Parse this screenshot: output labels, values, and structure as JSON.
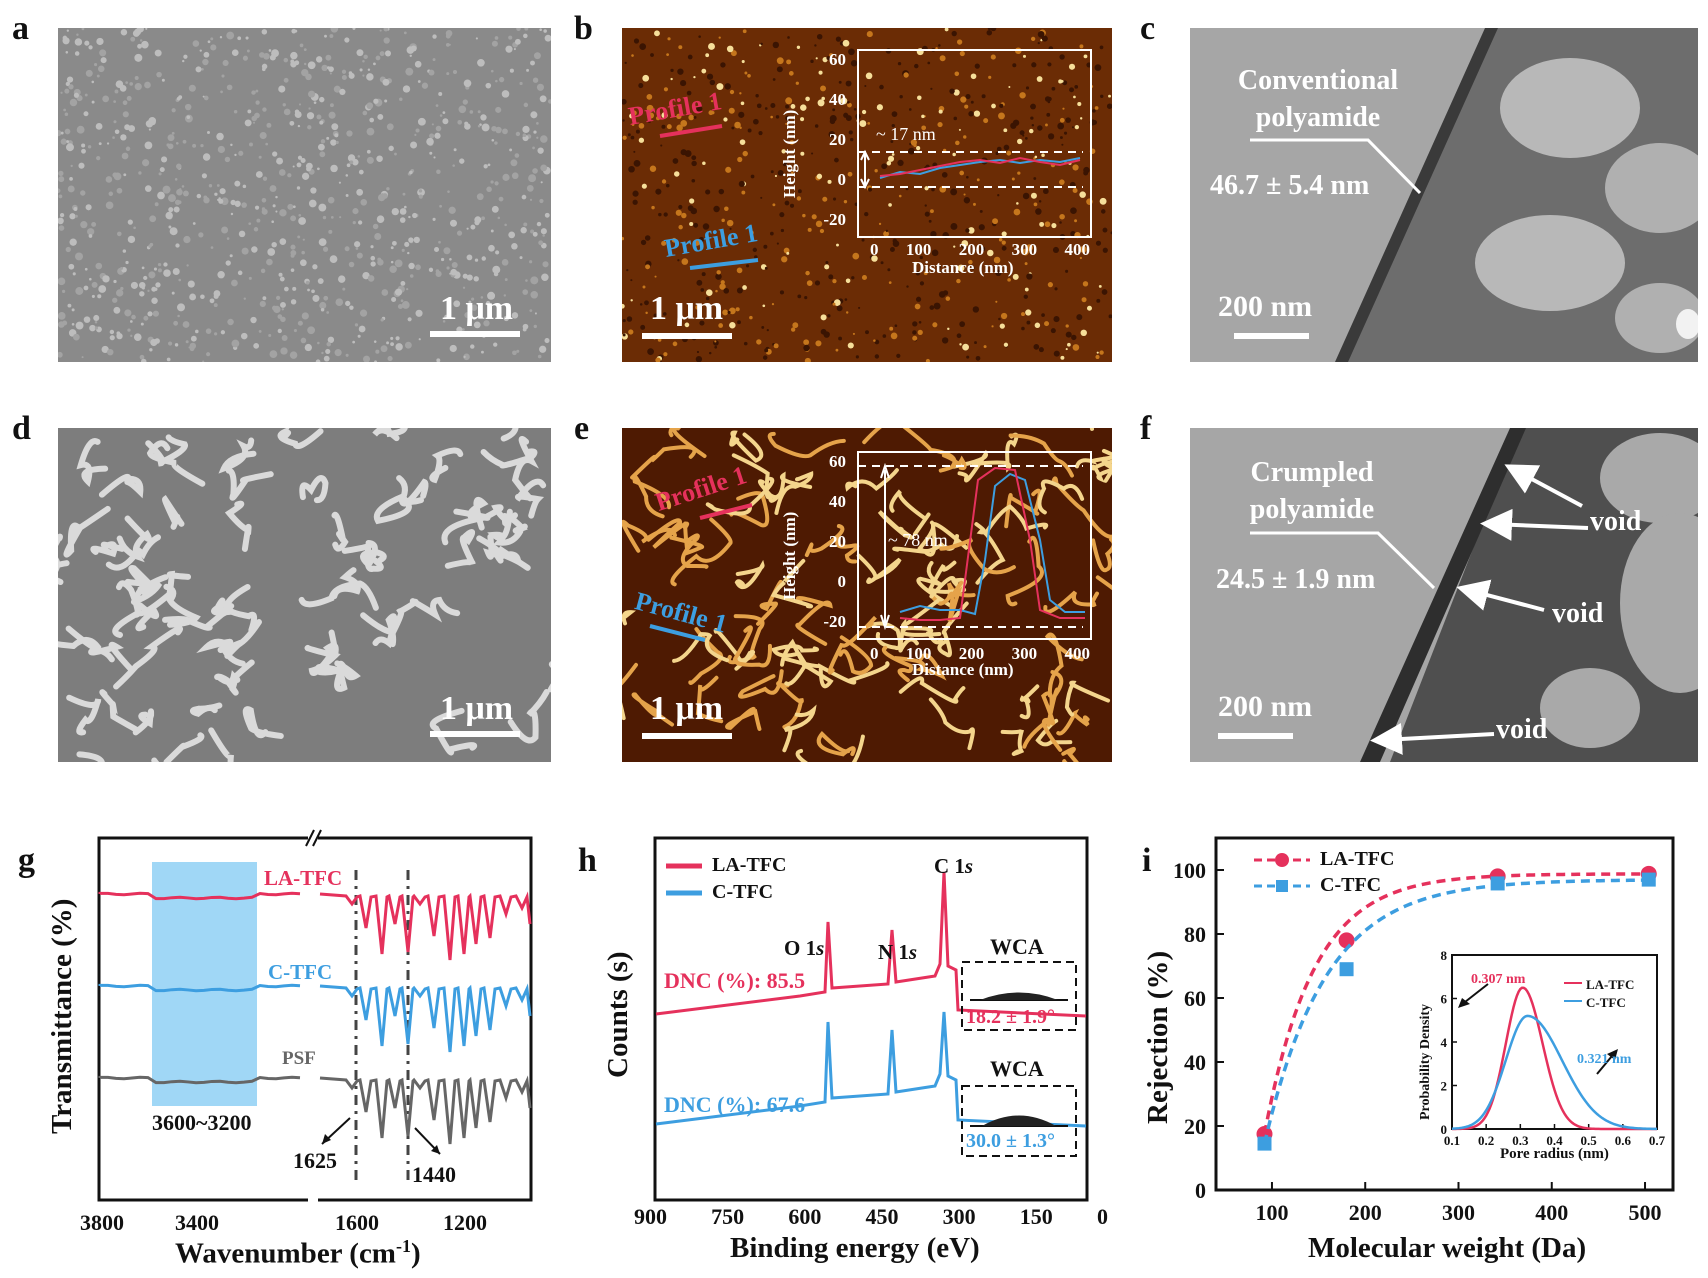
{
  "panels": {
    "a": {
      "label": "a",
      "scale": "1 μm"
    },
    "b": {
      "label": "b",
      "scale": "1 μm",
      "profile_red": "Profile 1",
      "profile_blue": "Profile 1",
      "inset": {
        "ylabel": "Height (nm)",
        "xlabel": "Distance (nm)",
        "annotation": "~ 17 nm",
        "yticks": [
          "60",
          "40",
          "20",
          "0",
          "-20"
        ],
        "xticks": [
          "0",
          "100",
          "200",
          "300",
          "400"
        ]
      }
    },
    "c": {
      "label": "c",
      "scale": "200 nm",
      "title_line1": "Conventional",
      "title_line2": "polyamide",
      "thickness": "46.7 ± 5.4 nm"
    },
    "d": {
      "label": "d",
      "scale": "1 μm"
    },
    "e": {
      "label": "e",
      "scale": "1 μm",
      "profile_red": "Profile 1",
      "profile_blue": "Profile 1",
      "inset": {
        "ylabel": "Height (nm)",
        "xlabel": "Distance (nm)",
        "annotation": "~ 78 nm",
        "yticks": [
          "60",
          "40",
          "20",
          "0",
          "-20"
        ],
        "xticks": [
          "0",
          "100",
          "200",
          "300",
          "400"
        ]
      }
    },
    "f": {
      "label": "f",
      "scale": "200 nm",
      "title_line1": "Crumpled",
      "title_line2": "polyamide",
      "thickness": "24.5 ± 1.9 nm",
      "void1": "void",
      "void2": "void",
      "void3": "void"
    },
    "g": {
      "label": "g"
    },
    "h": {
      "label": "h"
    },
    "i": {
      "label": "i"
    }
  },
  "chart_data": [
    {
      "id": "g",
      "type": "line",
      "xlabel": "Wavenumber (cm",
      "xlabel_sup": "-1",
      "xlabel_close": ")",
      "ylabel": "Transmittance (%)",
      "xticks": [
        "3800",
        "3400",
        "1600",
        "1200"
      ],
      "series": [
        {
          "name": "LA-TFC",
          "color": "#e5315c"
        },
        {
          "name": "C-TFC",
          "color": "#3d9ee0"
        },
        {
          "name": "PSF",
          "color": "#666666"
        }
      ],
      "band": "3600~3200",
      "peaks": [
        "1625",
        "1440"
      ]
    },
    {
      "id": "h",
      "type": "line",
      "xlabel": "Binding energy (eV)",
      "ylabel": "Counts (s)",
      "xticks": [
        "900",
        "750",
        "600",
        "450",
        "300",
        "150",
        "0"
      ],
      "series": [
        {
          "name": "LA-TFC",
          "color": "#e5315c",
          "dnc": "DNC (%): 85.5",
          "wca": "WCA",
          "angle": "18.2 ± 1.9°"
        },
        {
          "name": "C-TFC",
          "color": "#3d9ee0",
          "dnc": "DNC (%): 67.6",
          "wca": "WCA",
          "angle": "30.0 ± 1.3°"
        }
      ],
      "peaks": {
        "o": "O 1",
        "n": "N 1",
        "c": "C 1",
        "s": "s"
      }
    },
    {
      "id": "i",
      "type": "scatter",
      "xlabel": "Molecular weight (Da)",
      "ylabel": "Rejection (%)",
      "xlim": [
        40,
        530
      ],
      "ylim": [
        0,
        110
      ],
      "xticks": [
        100,
        200,
        300,
        400,
        500
      ],
      "yticks": [
        0,
        20,
        40,
        60,
        80,
        100
      ],
      "series": [
        {
          "name": "LA-TFC",
          "color": "#e5315c",
          "x": [
            92,
            180,
            342,
            504
          ],
          "y": [
            17.5,
            78,
            98,
            98.8
          ]
        },
        {
          "name": "C-TFC",
          "color": "#3d9ee0",
          "x": [
            92,
            180,
            342,
            504
          ],
          "y": [
            14.5,
            69,
            95.8,
            97
          ]
        }
      ],
      "inset": {
        "type": "line",
        "xlabel": "Pore radius (nm)",
        "ylabel": "Probability Density",
        "xlim": [
          0.1,
          0.7
        ],
        "ylim": [
          0,
          8
        ],
        "xticks": [
          "0.1",
          "0.2",
          "0.3",
          "0.4",
          "0.5",
          "0.6",
          "0.7"
        ],
        "yticks": [
          "0",
          "2",
          "4",
          "6",
          "8"
        ],
        "series": [
          {
            "name": "LA-TFC",
            "color": "#e5315c",
            "peak_x": 0.307,
            "peak_y": 6.5,
            "label": "0.307 nm"
          },
          {
            "name": "C-TFC",
            "color": "#3d9ee0",
            "peak_x": 0.321,
            "peak_y": 5.2,
            "label": "0.321 nm"
          }
        ]
      }
    }
  ]
}
